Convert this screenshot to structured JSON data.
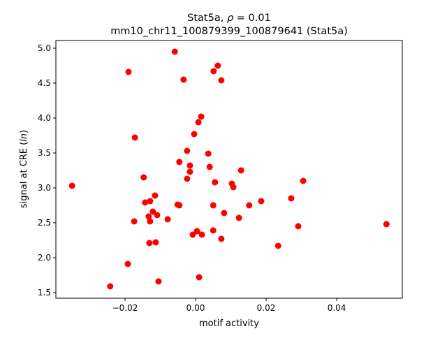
{
  "chart_data": {
    "type": "scatter",
    "title_line1_prefix": "Stat5a, ",
    "title_line1_rho": "ρ",
    "title_line1_suffix": " = 0.01",
    "title_line2": "mm10_chr11_100879399_100879641 (Stat5a)",
    "xlabel": "motif activity",
    "ylabel_prefix": "signal at CRE (",
    "ylabel_italic": "ln",
    "ylabel_suffix": ")",
    "xlim": [
      -0.0396,
      0.0586
    ],
    "ylim": [
      1.42,
      5.11
    ],
    "xticks": [
      -0.02,
      0.0,
      0.02,
      0.04
    ],
    "xtick_labels": [
      "−0.02",
      "0.00",
      "0.02",
      "0.04"
    ],
    "yticks": [
      1.5,
      2.0,
      2.5,
      3.0,
      3.5,
      4.0,
      4.5,
      5.0
    ],
    "ytick_labels": [
      "1.5",
      "2.0",
      "2.5",
      "3.0",
      "3.5",
      "4.0",
      "4.5",
      "5.0"
    ],
    "grid": false,
    "marker_color": "#ff0000",
    "points": [
      [
        -0.035,
        3.03
      ],
      [
        -0.0242,
        1.59
      ],
      [
        -0.019,
        4.66
      ],
      [
        -0.0192,
        1.91
      ],
      [
        -0.0172,
        3.72
      ],
      [
        -0.0174,
        2.52
      ],
      [
        -0.0147,
        3.15
      ],
      [
        -0.0143,
        2.79
      ],
      [
        -0.0129,
        2.81
      ],
      [
        -0.0133,
        2.59
      ],
      [
        -0.0129,
        2.52
      ],
      [
        -0.0121,
        2.66
      ],
      [
        -0.0115,
        2.89
      ],
      [
        -0.0109,
        2.61
      ],
      [
        -0.0131,
        2.21
      ],
      [
        -0.0113,
        2.22
      ],
      [
        -0.0105,
        1.66
      ],
      [
        -0.0079,
        2.55
      ],
      [
        -0.0059,
        4.95
      ],
      [
        -0.0051,
        2.76
      ],
      [
        -0.0046,
        2.75
      ],
      [
        -0.0046,
        3.37
      ],
      [
        -0.0034,
        4.55
      ],
      [
        -0.0024,
        3.53
      ],
      [
        -0.0024,
        3.13
      ],
      [
        -0.0016,
        3.32
      ],
      [
        -0.0016,
        3.23
      ],
      [
        -0.0008,
        2.33
      ],
      [
        -0.0004,
        3.77
      ],
      [
        0.0004,
        2.38
      ],
      [
        0.0008,
        3.94
      ],
      [
        0.0016,
        4.02
      ],
      [
        0.001,
        1.72
      ],
      [
        0.0018,
        2.33
      ],
      [
        0.0036,
        3.49
      ],
      [
        0.004,
        3.3
      ],
      [
        0.005,
        2.39
      ],
      [
        0.005,
        2.75
      ],
      [
        0.0051,
        4.67
      ],
      [
        0.0055,
        3.08
      ],
      [
        0.0063,
        4.75
      ],
      [
        0.0073,
        4.54
      ],
      [
        0.0073,
        2.27
      ],
      [
        0.0081,
        2.64
      ],
      [
        0.0103,
        3.06
      ],
      [
        0.0107,
        3.01
      ],
      [
        0.0123,
        2.57
      ],
      [
        0.0129,
        3.25
      ],
      [
        0.0152,
        2.75
      ],
      [
        0.0186,
        2.81
      ],
      [
        0.0234,
        2.17
      ],
      [
        0.0271,
        2.85
      ],
      [
        0.0291,
        2.45
      ],
      [
        0.0305,
        3.1
      ],
      [
        0.0541,
        2.48
      ]
    ]
  }
}
